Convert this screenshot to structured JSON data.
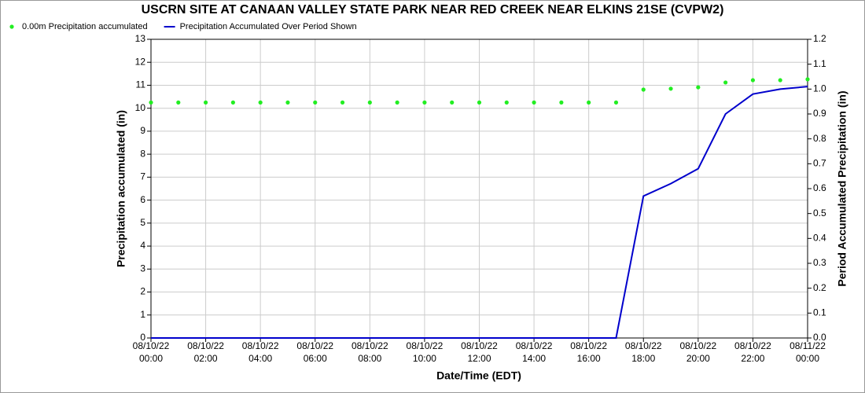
{
  "chart_data": {
    "type": "line",
    "title": "USCRN SITE AT CANAAN VALLEY STATE PARK NEAR RED CREEK NEAR ELKINS 21SE (CVPW2)",
    "x_label": "Date/Time (EDT)",
    "y_label": "Precipitation accumulated (in)",
    "y2_label": "Period Accumulated Precipitation (in)",
    "categories": [
      "08/10/22\n00:00",
      null,
      "08/10/22\n02:00",
      null,
      "08/10/22\n04:00",
      null,
      "08/10/22\n06:00",
      null,
      "08/10/22\n08:00",
      null,
      "08/10/22\n10:00",
      null,
      "08/10/22\n12:00",
      null,
      "08/10/22\n14:00",
      null,
      "08/10/22\n16:00",
      null,
      "08/10/22\n18:00",
      null,
      "08/10/22\n20:00",
      null,
      "08/10/22\n22:00",
      null,
      "08/11/22\n00:00"
    ],
    "series": [
      {
        "name": "0.00m Precipitation accumulated",
        "color": "#22ee22",
        "marker": "dot",
        "values": [
          10.25,
          10.25,
          10.25,
          10.25,
          10.25,
          10.25,
          10.25,
          10.25,
          10.25,
          10.25,
          10.25,
          10.25,
          10.25,
          10.25,
          10.25,
          10.25,
          10.25,
          10.25,
          10.81,
          10.85,
          10.91,
          11.12,
          11.22,
          11.22,
          11.26
        ]
      },
      {
        "name": "Precipitation Accumulated Over Period Shown",
        "color": "#0000cc",
        "marker": "line",
        "axis": "y2",
        "values": [
          0,
          0,
          0,
          0,
          0,
          0,
          0,
          0,
          0,
          0,
          0,
          0,
          0,
          0,
          0,
          0,
          0,
          0,
          0.57,
          0.62,
          0.68,
          0.9,
          0.98,
          1.0,
          1.01
        ]
      }
    ],
    "ylim": [
      0,
      13
    ],
    "yticks": [
      0,
      1,
      2,
      3,
      4,
      5,
      6,
      7,
      8,
      9,
      10,
      11,
      12,
      13
    ],
    "y2lim": [
      0,
      1.2
    ],
    "y2ticks": [
      {
        "value": 0,
        "label": "0.0"
      },
      0.1,
      0.2,
      0.3,
      0.4,
      0.5,
      0.6,
      0.7,
      0.8,
      0.9,
      {
        "value": 1,
        "label": "1.0"
      },
      1.1,
      1.2
    ],
    "grid": true,
    "legend": "top-left"
  }
}
